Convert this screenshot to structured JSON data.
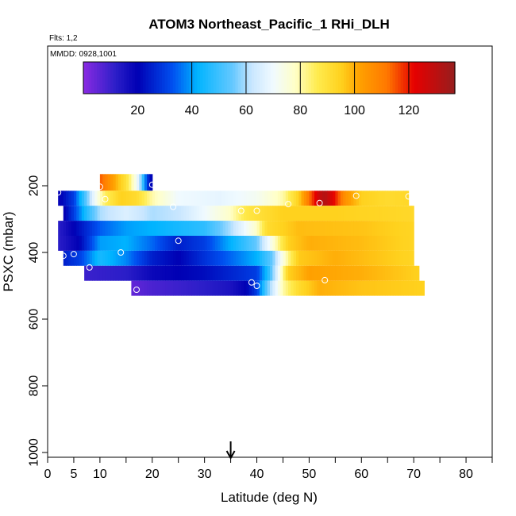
{
  "chart_data": {
    "type": "heatmap",
    "title": "ATOM3 Northeast_Pacific_1 RHi_DLH",
    "flights_note": "Flts: 1,2",
    "date_note": "MMDD: 0928,1001",
    "xlabel": "Latitude (deg N)",
    "ylabel": "PSXC (mbar)",
    "xlim": [
      0,
      85
    ],
    "ylim": [
      1000,
      0
    ],
    "x_ticks": [
      0,
      5,
      10,
      20,
      30,
      40,
      50,
      60,
      70,
      80
    ],
    "x_minor_ticks": [
      15,
      25,
      35,
      45,
      55,
      65,
      75,
      85
    ],
    "y_ticks": [
      200,
      400,
      600,
      800,
      1000
    ],
    "arrow_latitude": 35,
    "colorbar": {
      "range": [
        0,
        137
      ],
      "labels": [
        20,
        40,
        60,
        80,
        100,
        120
      ],
      "dividers": [
        40,
        60,
        80,
        100,
        120
      ],
      "stops": [
        {
          "v": 0,
          "color": "#8a2be2"
        },
        {
          "v": 12,
          "color": "#2b1ec8"
        },
        {
          "v": 20,
          "color": "#0000b4"
        },
        {
          "v": 33,
          "color": "#0050f0"
        },
        {
          "v": 42,
          "color": "#00b4ff"
        },
        {
          "v": 55,
          "color": "#64c8ff"
        },
        {
          "v": 62,
          "color": "#c8e6ff"
        },
        {
          "v": 70,
          "color": "#f0faff"
        },
        {
          "v": 78,
          "color": "#ffffc8"
        },
        {
          "v": 86,
          "color": "#ffec50"
        },
        {
          "v": 95,
          "color": "#ffd21e"
        },
        {
          "v": 102,
          "color": "#ffa000"
        },
        {
          "v": 112,
          "color": "#ff7800"
        },
        {
          "v": 122,
          "color": "#e60000"
        },
        {
          "v": 137,
          "color": "#961e1e"
        }
      ]
    },
    "bands": [
      {
        "pmin": 165,
        "pmax": 215,
        "xmin": 10,
        "xmax": 20,
        "knots": [
          [
            10,
            115
          ],
          [
            13,
            100
          ],
          [
            15,
            90
          ],
          [
            17,
            72
          ],
          [
            18,
            55
          ],
          [
            19,
            30
          ],
          [
            20,
            18
          ]
        ]
      },
      {
        "pmin": 215,
        "pmax": 260,
        "xmin": 2,
        "xmax": 69,
        "knots": [
          [
            2,
            18
          ],
          [
            5,
            30
          ],
          [
            7,
            50
          ],
          [
            9,
            70
          ],
          [
            11,
            85
          ],
          [
            14,
            95
          ],
          [
            17,
            92
          ],
          [
            20,
            80
          ],
          [
            25,
            70
          ],
          [
            33,
            68
          ],
          [
            40,
            72
          ],
          [
            45,
            80
          ],
          [
            48,
            95
          ],
          [
            50,
            112
          ],
          [
            52,
            128
          ],
          [
            53,
            132
          ],
          [
            55,
            120
          ],
          [
            57,
            105
          ],
          [
            60,
            95
          ],
          [
            65,
            92
          ],
          [
            69,
            93
          ]
        ]
      },
      {
        "pmin": 260,
        "pmax": 305,
        "xmin": 3,
        "xmax": 70,
        "knots": [
          [
            3,
            18
          ],
          [
            5,
            30
          ],
          [
            8,
            50
          ],
          [
            10,
            60
          ],
          [
            15,
            66
          ],
          [
            20,
            60
          ],
          [
            25,
            62
          ],
          [
            30,
            70
          ],
          [
            35,
            78
          ],
          [
            38,
            88
          ],
          [
            45,
            95
          ],
          [
            55,
            95
          ],
          [
            70,
            93
          ]
        ]
      },
      {
        "pmin": 305,
        "pmax": 350,
        "xmin": 2,
        "xmax": 70,
        "knots": [
          [
            2,
            12
          ],
          [
            5,
            20
          ],
          [
            10,
            34
          ],
          [
            15,
            40
          ],
          [
            20,
            42
          ],
          [
            25,
            45
          ],
          [
            30,
            48
          ],
          [
            35,
            60
          ],
          [
            40,
            78
          ],
          [
            42,
            92
          ],
          [
            48,
            98
          ],
          [
            60,
            97
          ],
          [
            70,
            94
          ]
        ]
      },
      {
        "pmin": 350,
        "pmax": 395,
        "xmin": 2,
        "xmax": 70,
        "knots": [
          [
            2,
            12
          ],
          [
            6,
            20
          ],
          [
            10,
            40
          ],
          [
            15,
            42
          ],
          [
            20,
            35
          ],
          [
            25,
            25
          ],
          [
            30,
            30
          ],
          [
            35,
            42
          ],
          [
            40,
            55
          ],
          [
            43,
            75
          ],
          [
            46,
            95
          ],
          [
            50,
            100
          ],
          [
            60,
            98
          ],
          [
            70,
            94
          ]
        ]
      },
      {
        "pmin": 395,
        "pmax": 440,
        "xmin": 3,
        "xmax": 70,
        "knots": [
          [
            3,
            25
          ],
          [
            6,
            30
          ],
          [
            10,
            45
          ],
          [
            15,
            38
          ],
          [
            20,
            25
          ],
          [
            25,
            20
          ],
          [
            30,
            28
          ],
          [
            35,
            35
          ],
          [
            40,
            42
          ],
          [
            43,
            55
          ],
          [
            45,
            75
          ],
          [
            48,
            96
          ],
          [
            55,
            100
          ],
          [
            65,
            96
          ],
          [
            70,
            94
          ]
        ]
      },
      {
        "pmin": 440,
        "pmax": 485,
        "xmin": 7,
        "xmax": 71,
        "knots": [
          [
            7,
            10
          ],
          [
            15,
            12
          ],
          [
            20,
            18
          ],
          [
            25,
            20
          ],
          [
            30,
            22
          ],
          [
            35,
            26
          ],
          [
            40,
            30
          ],
          [
            42,
            45
          ],
          [
            44,
            68
          ],
          [
            46,
            95
          ],
          [
            50,
            102
          ],
          [
            60,
            100
          ],
          [
            71,
            95
          ]
        ]
      },
      {
        "pmin": 485,
        "pmax": 530,
        "xmin": 16,
        "xmax": 72,
        "knots": [
          [
            16,
            5
          ],
          [
            20,
            8
          ],
          [
            25,
            10
          ],
          [
            30,
            12
          ],
          [
            35,
            15
          ],
          [
            38,
            20
          ],
          [
            40,
            30
          ],
          [
            42,
            55
          ],
          [
            45,
            80
          ],
          [
            48,
            92
          ],
          [
            52,
            100
          ],
          [
            60,
            97
          ],
          [
            72,
            95
          ]
        ]
      }
    ],
    "points": [
      [
        2,
        220
      ],
      [
        10,
        203
      ],
      [
        20,
        197
      ],
      [
        11,
        240
      ],
      [
        24,
        263
      ],
      [
        37,
        275
      ],
      [
        40,
        275
      ],
      [
        46,
        255
      ],
      [
        52,
        252
      ],
      [
        59,
        230
      ],
      [
        69,
        232
      ],
      [
        25,
        365
      ],
      [
        3,
        410
      ],
      [
        5,
        405
      ],
      [
        14,
        400
      ],
      [
        8,
        445
      ],
      [
        39,
        490
      ],
      [
        40,
        500
      ],
      [
        53,
        483
      ],
      [
        17,
        512
      ]
    ]
  }
}
